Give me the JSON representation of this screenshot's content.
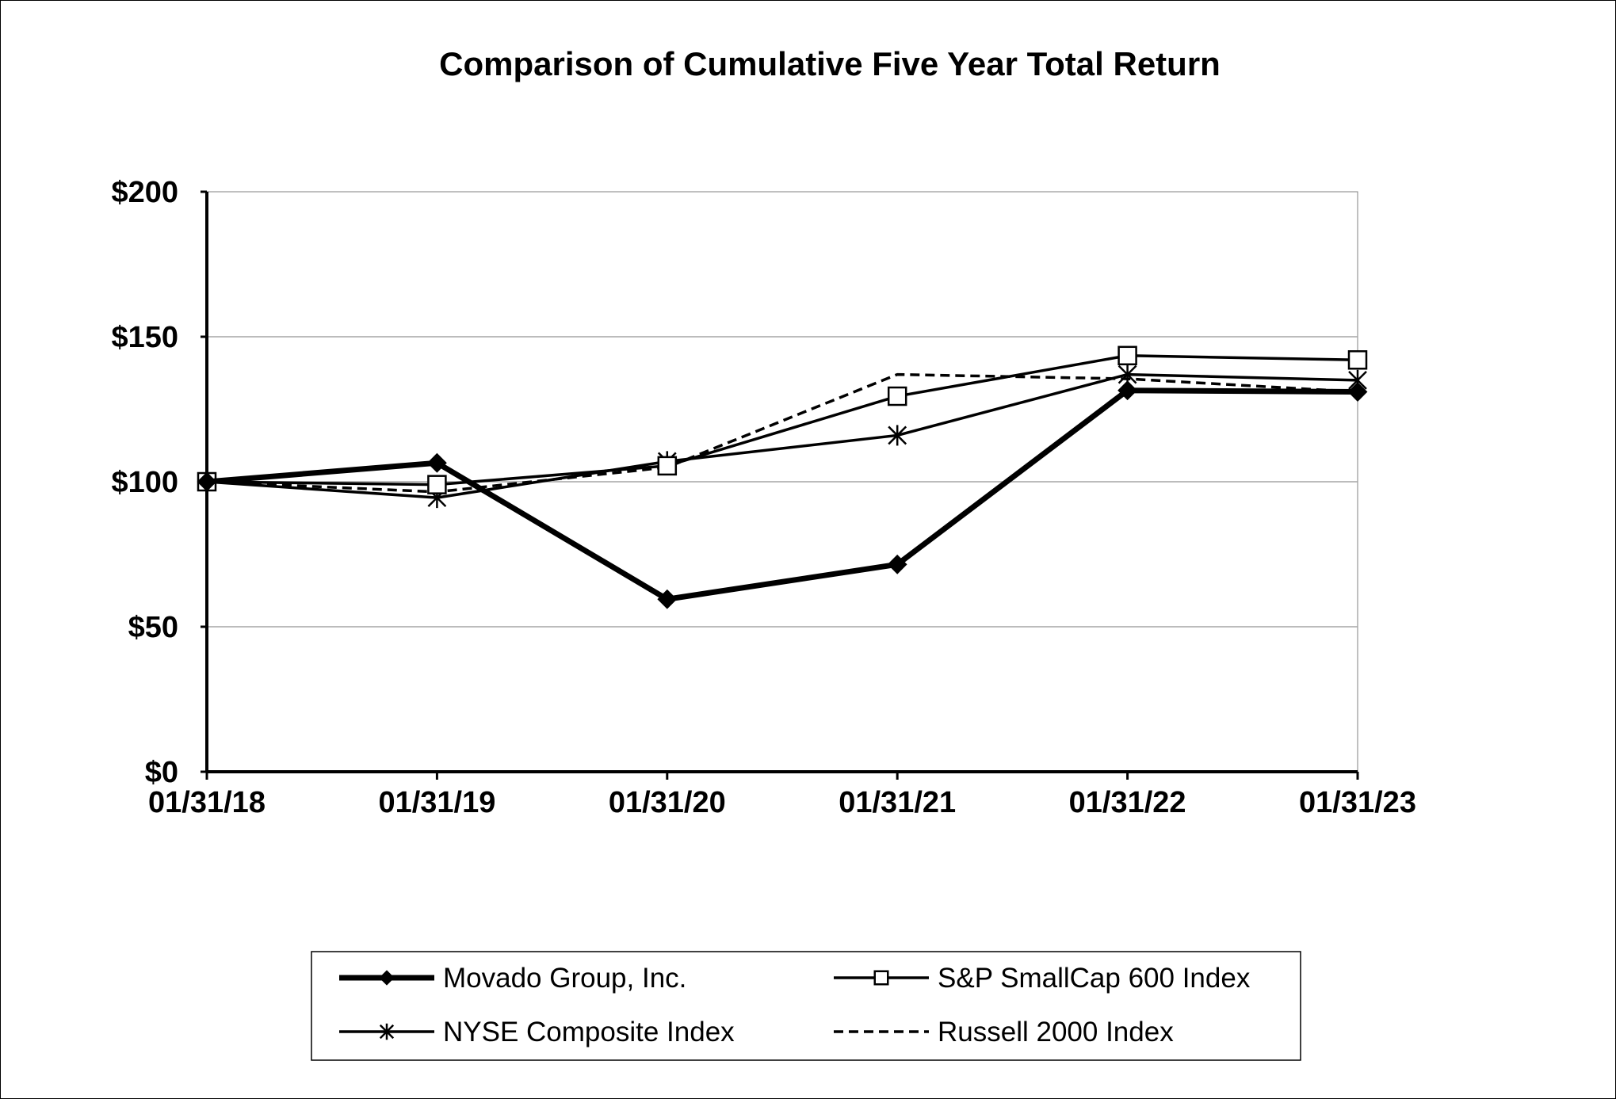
{
  "chart_data": {
    "type": "line",
    "title": "Comparison of Cumulative Five Year Total Return",
    "xlabel": "",
    "ylabel": "",
    "categories": [
      "01/31/18",
      "01/31/19",
      "01/31/20",
      "01/31/21",
      "01/31/22",
      "01/31/23"
    ],
    "y_ticks": [
      "$0",
      "$50",
      "$100",
      "$150",
      "$200"
    ],
    "ylim": [
      0,
      200
    ],
    "grid": "horizontal",
    "legend_position": "bottom",
    "series": [
      {
        "name": "Movado Group, Inc.",
        "values": [
          100,
          106.5,
          59.5,
          71.5,
          131.5,
          131
        ],
        "marker": "diamond",
        "line": "thick-solid",
        "color": "#000000"
      },
      {
        "name": "S&P SmallCap 600 Index",
        "values": [
          100,
          99,
          105.5,
          129.5,
          143.5,
          142
        ],
        "marker": "square",
        "line": "solid",
        "color": "#000000"
      },
      {
        "name": "NYSE Composite Index",
        "values": [
          100,
          94.5,
          107,
          116,
          137,
          135
        ],
        "marker": "asterisk",
        "line": "solid",
        "color": "#000000"
      },
      {
        "name": "Russell 2000 Index",
        "values": [
          100,
          96.5,
          105,
          137,
          135.5,
          131
        ],
        "marker": "none",
        "line": "dashed",
        "color": "#000000"
      }
    ]
  }
}
